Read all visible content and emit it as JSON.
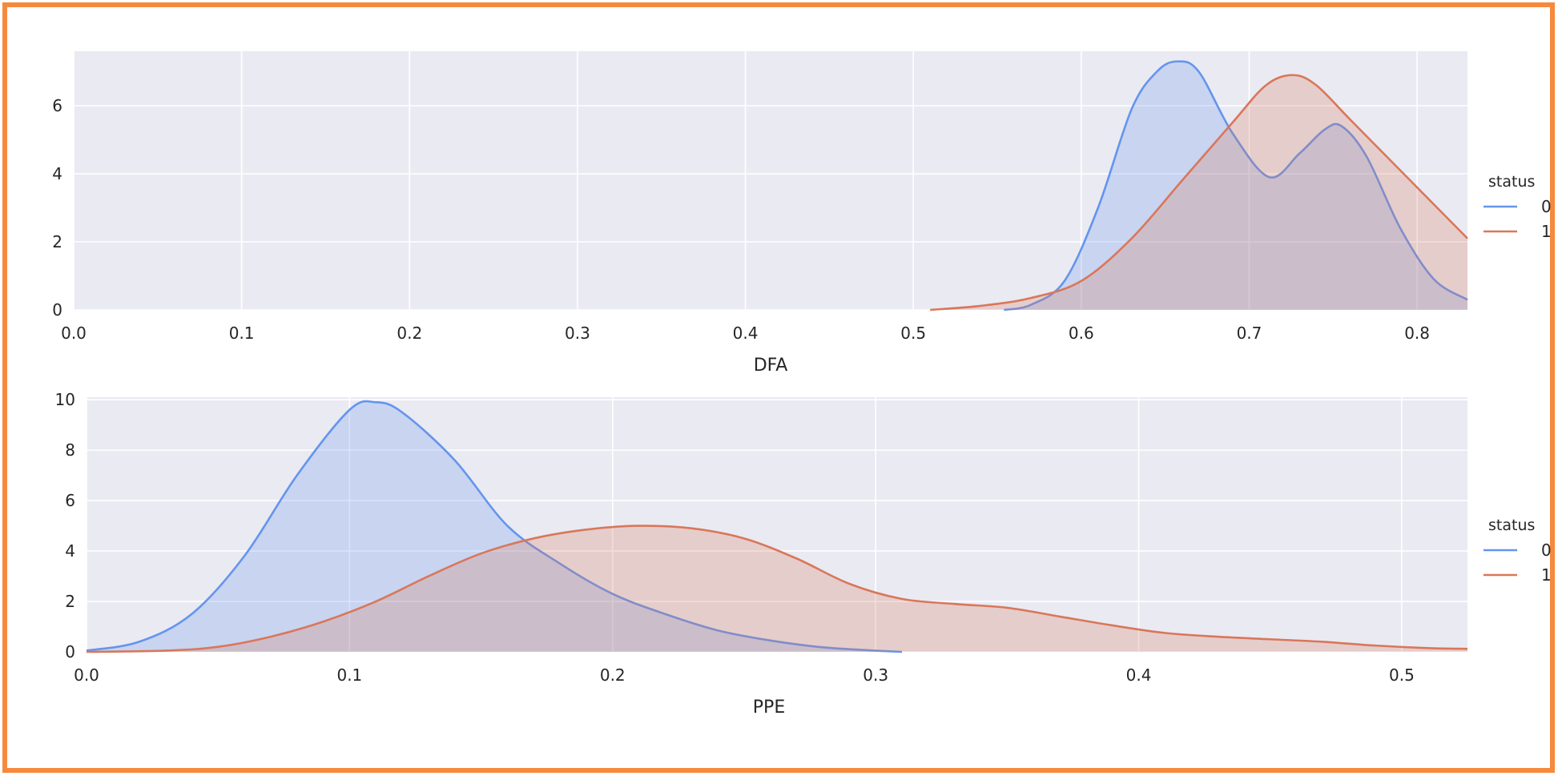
{
  "frame_color": "#f6893b",
  "style": {
    "panel_background": "#eaeaf2",
    "grid_color": "#ffffff",
    "series_colors": [
      "#6495ed",
      "#d9775a"
    ]
  },
  "chart_data": [
    {
      "type": "area",
      "xlabel": "DFA",
      "ylabel": "",
      "xlim": [
        0.0,
        0.83
      ],
      "ylim": [
        0,
        7.6
      ],
      "xticks": [
        0.0,
        0.1,
        0.2,
        0.3,
        0.4,
        0.5,
        0.6,
        0.7,
        0.8
      ],
      "xtick_labels": [
        "0.0",
        "0.1",
        "0.2",
        "0.3",
        "0.4",
        "0.5",
        "0.6",
        "0.7",
        "0.8"
      ],
      "yticks": [
        0,
        2,
        4,
        6
      ],
      "ytick_labels": [
        "0",
        "2",
        "4",
        "6"
      ],
      "grid": true,
      "legend": {
        "title": "status",
        "placement": "right",
        "labels": [
          "0",
          "1"
        ]
      },
      "series": [
        {
          "name": "0",
          "x": [
            0.554,
            0.57,
            0.59,
            0.61,
            0.63,
            0.645,
            0.657,
            0.67,
            0.69,
            0.712,
            0.73,
            0.745,
            0.755,
            0.77,
            0.79,
            0.81,
            0.83
          ],
          "y": [
            0.0,
            0.15,
            0.85,
            3.0,
            5.9,
            7.0,
            7.3,
            7.0,
            5.2,
            3.9,
            4.6,
            5.3,
            5.4,
            4.5,
            2.4,
            0.9,
            0.3
          ]
        },
        {
          "name": "1",
          "x": [
            0.51,
            0.54,
            0.57,
            0.6,
            0.63,
            0.66,
            0.69,
            0.71,
            0.726,
            0.74,
            0.76,
            0.79,
            0.81,
            0.83
          ],
          "y": [
            0.0,
            0.12,
            0.35,
            0.85,
            2.1,
            3.8,
            5.5,
            6.6,
            6.9,
            6.6,
            5.6,
            4.1,
            3.1,
            2.1
          ]
        }
      ]
    },
    {
      "type": "area",
      "xlabel": "PPE",
      "ylabel": "",
      "xlim": [
        0.0,
        0.525
      ],
      "ylim": [
        0,
        10.1
      ],
      "xticks": [
        0.0,
        0.1,
        0.2,
        0.3,
        0.4,
        0.5
      ],
      "xtick_labels": [
        "0.0",
        "0.1",
        "0.2",
        "0.3",
        "0.4",
        "0.5"
      ],
      "yticks": [
        0,
        2,
        4,
        6,
        8,
        10
      ],
      "ytick_labels": [
        "0",
        "2",
        "4",
        "6",
        "8",
        "10"
      ],
      "grid": true,
      "legend": {
        "title": "status",
        "placement": "right",
        "labels": [
          "0",
          "1"
        ]
      },
      "series": [
        {
          "name": "0",
          "x": [
            0.0,
            0.02,
            0.04,
            0.06,
            0.08,
            0.1,
            0.11,
            0.12,
            0.14,
            0.16,
            0.18,
            0.2,
            0.22,
            0.24,
            0.26,
            0.28,
            0.3,
            0.31
          ],
          "y": [
            0.05,
            0.4,
            1.5,
            3.8,
            7.0,
            9.6,
            9.9,
            9.5,
            7.6,
            5.0,
            3.5,
            2.3,
            1.5,
            0.85,
            0.45,
            0.18,
            0.05,
            0.0
          ]
        },
        {
          "name": "1",
          "x": [
            0.0,
            0.03,
            0.05,
            0.07,
            0.09,
            0.11,
            0.13,
            0.15,
            0.17,
            0.19,
            0.21,
            0.23,
            0.25,
            0.27,
            0.29,
            0.31,
            0.33,
            0.35,
            0.37,
            0.39,
            0.41,
            0.43,
            0.45,
            0.47,
            0.49,
            0.51,
            0.525
          ],
          "y": [
            0.0,
            0.05,
            0.2,
            0.6,
            1.2,
            2.0,
            3.0,
            3.9,
            4.5,
            4.85,
            5.0,
            4.9,
            4.5,
            3.7,
            2.7,
            2.1,
            1.9,
            1.75,
            1.4,
            1.05,
            0.75,
            0.6,
            0.5,
            0.4,
            0.25,
            0.15,
            0.12
          ]
        }
      ]
    }
  ]
}
